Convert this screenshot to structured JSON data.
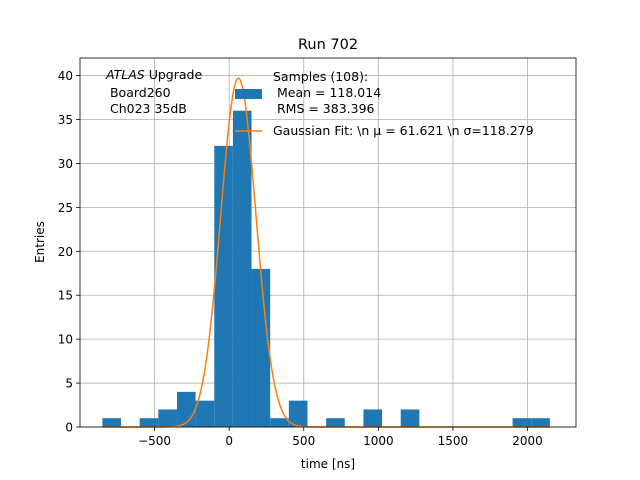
{
  "chart_data": {
    "type": "bar",
    "title": "Run 702",
    "xlabel": "time [ns]",
    "ylabel": "Entries",
    "xlim": [
      -1000,
      2325
    ],
    "ylim": [
      0,
      42
    ],
    "grid": true,
    "xticks": [
      -500,
      0,
      500,
      1000,
      1500,
      2000
    ],
    "yticks": [
      0,
      5,
      10,
      15,
      20,
      25,
      30,
      35,
      40
    ],
    "xtick_labels": [
      "−500",
      "0",
      "500",
      "1000",
      "1500",
      "2000"
    ],
    "ytick_labels": [
      "0",
      "5",
      "10",
      "15",
      "20",
      "25",
      "30",
      "35",
      "40"
    ],
    "annotation": {
      "atlas": "ATLAS",
      "line1_rest": " Upgrade",
      "line2": " Board260",
      "line3": " Ch023 35dB"
    },
    "legend": {
      "placement": "top-right",
      "hist_line1": "Samples (108):",
      "hist_line2": " Mean = 118.014",
      "hist_line3": " RMS = 383.396",
      "fit_label": "Gaussian Fit: \\n μ = 61.621 \\n σ=118.279"
    },
    "histogram": {
      "color": "#1f77b4",
      "bin_width": 125,
      "bins": [
        {
          "x0": -850,
          "count": 1
        },
        {
          "x0": -600,
          "count": 1
        },
        {
          "x0": -475,
          "count": 2
        },
        {
          "x0": -350,
          "count": 4
        },
        {
          "x0": -225,
          "count": 3
        },
        {
          "x0": -100,
          "count": 32
        },
        {
          "x0": 25,
          "count": 36
        },
        {
          "x0": 150,
          "count": 18
        },
        {
          "x0": 275,
          "count": 1
        },
        {
          "x0": 400,
          "count": 3
        },
        {
          "x0": 650,
          "count": 1
        },
        {
          "x0": 900,
          "count": 2
        },
        {
          "x0": 1150,
          "count": 2
        },
        {
          "x0": 1900,
          "count": 1
        },
        {
          "x0": 2025,
          "count": 1
        }
      ]
    },
    "fit": {
      "color": "#ff7f0e",
      "amplitude": 39.7,
      "mu": 61.621,
      "sigma": 118.279,
      "x_range": [
        -850,
        2150
      ]
    }
  }
}
